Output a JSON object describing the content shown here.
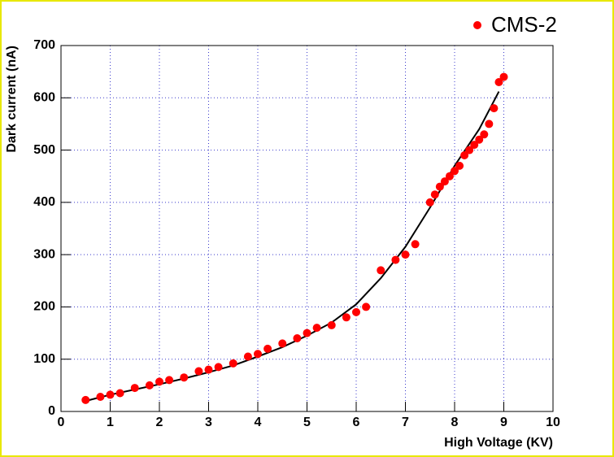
{
  "chart_data": {
    "type": "scatter",
    "xlabel": "High Voltage (KV)",
    "ylabel": "Dark current (nA)",
    "xlim": [
      0,
      10
    ],
    "xticks": [
      0,
      1,
      2,
      3,
      4,
      5,
      6,
      7,
      8,
      9,
      10
    ],
    "ylim": [
      0,
      700
    ],
    "yticks": [
      0,
      100,
      200,
      300,
      400,
      500,
      600,
      700
    ],
    "grid": true,
    "legend": "top-right",
    "series": [
      {
        "name": "CMS-2",
        "color": "#ff0000",
        "x": [
          0.5,
          0.8,
          1.0,
          1.2,
          1.5,
          1.8,
          2.0,
          2.2,
          2.5,
          2.8,
          3.0,
          3.2,
          3.5,
          3.8,
          4.0,
          4.2,
          4.5,
          4.8,
          5.0,
          5.2,
          5.5,
          5.8,
          6.0,
          6.2,
          6.5,
          6.8,
          7.0,
          7.2,
          7.5,
          7.6,
          7.7,
          7.8,
          7.9,
          8.0,
          8.1,
          8.2,
          8.3,
          8.4,
          8.5,
          8.6,
          8.7,
          8.8,
          8.9,
          9.0
        ],
        "values": [
          22,
          28,
          32,
          35,
          45,
          50,
          57,
          60,
          65,
          77,
          80,
          85,
          92,
          105,
          110,
          120,
          130,
          140,
          150,
          160,
          165,
          180,
          190,
          200,
          270,
          290,
          300,
          320,
          400,
          415,
          430,
          440,
          450,
          460,
          470,
          490,
          500,
          510,
          520,
          530,
          550,
          580,
          630,
          640
        ]
      }
    ],
    "fit": {
      "color": "#000000",
      "x": [
        0.5,
        1,
        1.5,
        2,
        2.5,
        3,
        3.5,
        4,
        4.5,
        5,
        5.5,
        6,
        6.5,
        7,
        7.5,
        8,
        8.5,
        8.9
      ],
      "values": [
        20,
        32,
        42,
        52,
        63,
        75,
        88,
        105,
        123,
        145,
        170,
        205,
        255,
        315,
        390,
        470,
        540,
        612
      ]
    }
  }
}
